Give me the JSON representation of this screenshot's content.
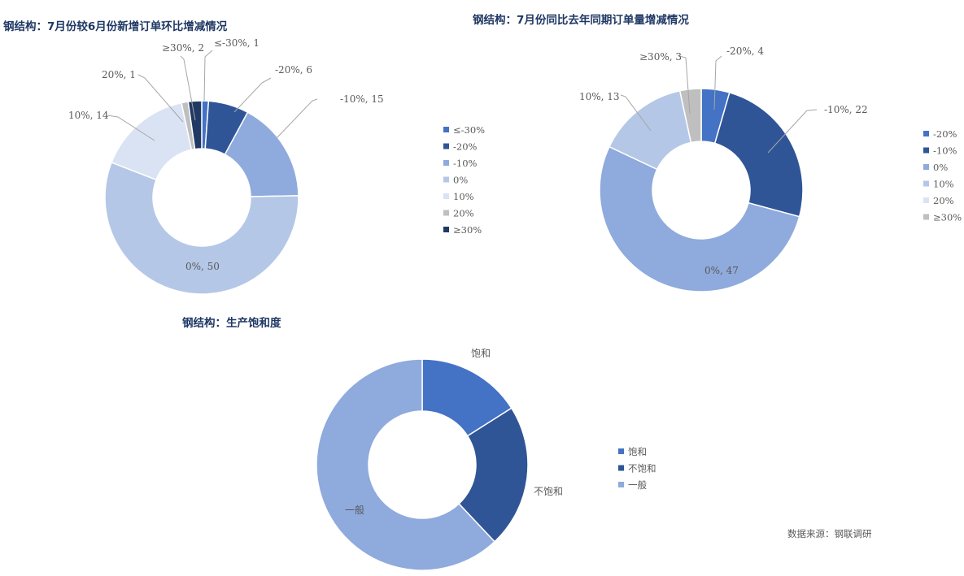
{
  "chart_data": [
    {
      "type": "pie",
      "title": "钢结构：7月份较6月份新增订单环比增减情况",
      "categories": [
        "≤-30%",
        "-20%",
        "-10%",
        "0%",
        "10%",
        "20%",
        "≥30%"
      ],
      "values": [
        1,
        6,
        15,
        50,
        14,
        1,
        2
      ],
      "data_labels": [
        "≤-30%, 1",
        "-20%, 6",
        "-10%, 15",
        "0%, 50",
        "10%, 14",
        "20%, 1",
        "≥30%, 2"
      ],
      "colors": [
        "#4472c4",
        "#2f5597",
        "#8faadc",
        "#b4c7e7",
        "#dae3f3",
        "#bfbfbf",
        "#203864"
      ],
      "legend_position": "right",
      "donut": true
    },
    {
      "type": "pie",
      "title": "钢结构：7月份同比去年同期订单量增减情况",
      "categories": [
        "-20%",
        "-10%",
        "0%",
        "10%",
        "20%",
        "≥30%"
      ],
      "values": [
        4,
        22,
        47,
        13,
        0,
        3
      ],
      "data_labels": [
        "-20%, 4",
        "-10%, 22",
        "0%, 47",
        "10%, 13",
        "",
        "≥30%, 3"
      ],
      "colors": [
        "#4472c4",
        "#2f5597",
        "#8faadc",
        "#b4c7e7",
        "#dae3f3",
        "#bfbfbf"
      ],
      "legend_position": "right",
      "donut": true
    },
    {
      "type": "pie",
      "title": "钢结构：生产饱和度",
      "categories": [
        "饱和",
        "不饱和",
        "一般"
      ],
      "values": [
        16,
        22,
        62
      ],
      "data_labels": [
        "饱和",
        "不饱和",
        "一般"
      ],
      "colors": [
        "#4472c4",
        "#2f5597",
        "#8faadc"
      ],
      "legend_position": "right",
      "donut": true
    }
  ],
  "source": "数据来源：钢联调研"
}
